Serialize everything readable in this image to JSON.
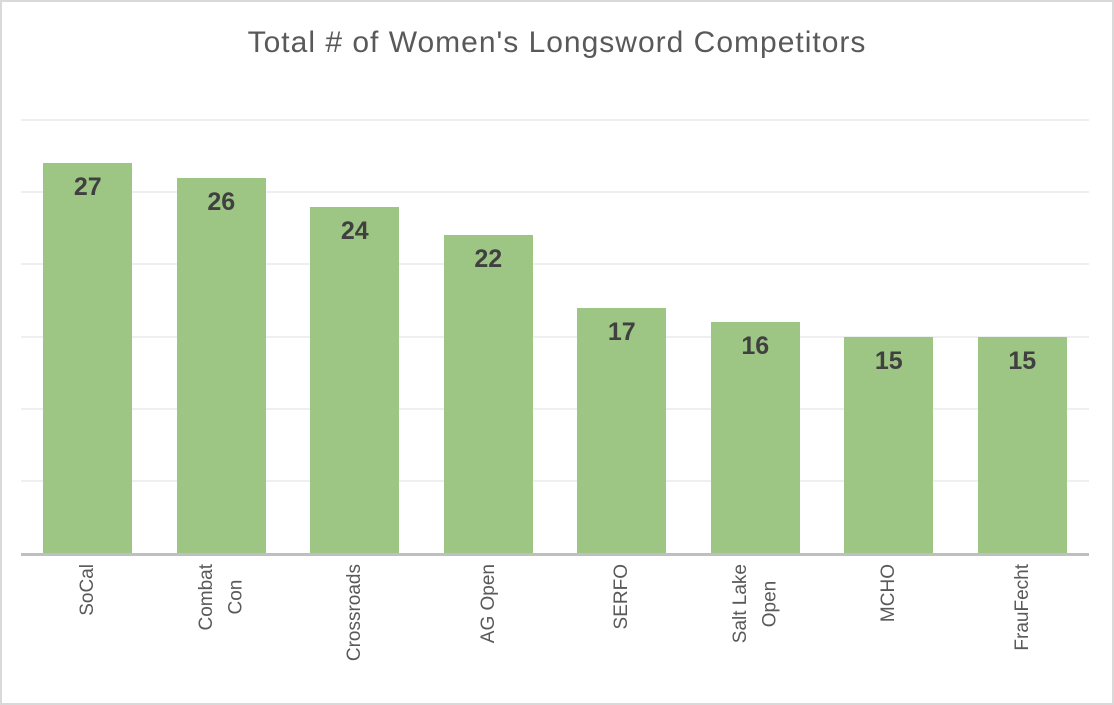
{
  "chart_data": {
    "type": "bar",
    "title": "Total # of Women's Longsword Competitors",
    "categories": [
      "SoCal",
      "Combat\nCon",
      "Crossroads",
      "AG Open",
      "SERFO",
      "Salt Lake\nOpen",
      "MCHO",
      "FrauFecht"
    ],
    "values": [
      27,
      26,
      24,
      22,
      17,
      16,
      15,
      15
    ],
    "series": [
      {
        "name": "Total # of Women's Longsword Competitors",
        "values": [
          27,
          26,
          24,
          22,
          17,
          16,
          15,
          15
        ]
      }
    ],
    "xlabel": "",
    "ylabel": "",
    "ylim": [
      0,
      30
    ],
    "gridline_step": 5,
    "grid": true,
    "legend_position": "none",
    "y_tick_labels_visible": false,
    "data_labels_position": "inside-end",
    "category_label_rotation_degrees": 90,
    "colors": {
      "bar_fill": "#9dc684",
      "title_text": "#595959",
      "category_text": "#595959",
      "data_label_text": "#404040",
      "gridline": "#efefef",
      "axis_line": "#bfbfbf",
      "chart_border": "#d9d9d9",
      "background": "#ffffff"
    }
  }
}
